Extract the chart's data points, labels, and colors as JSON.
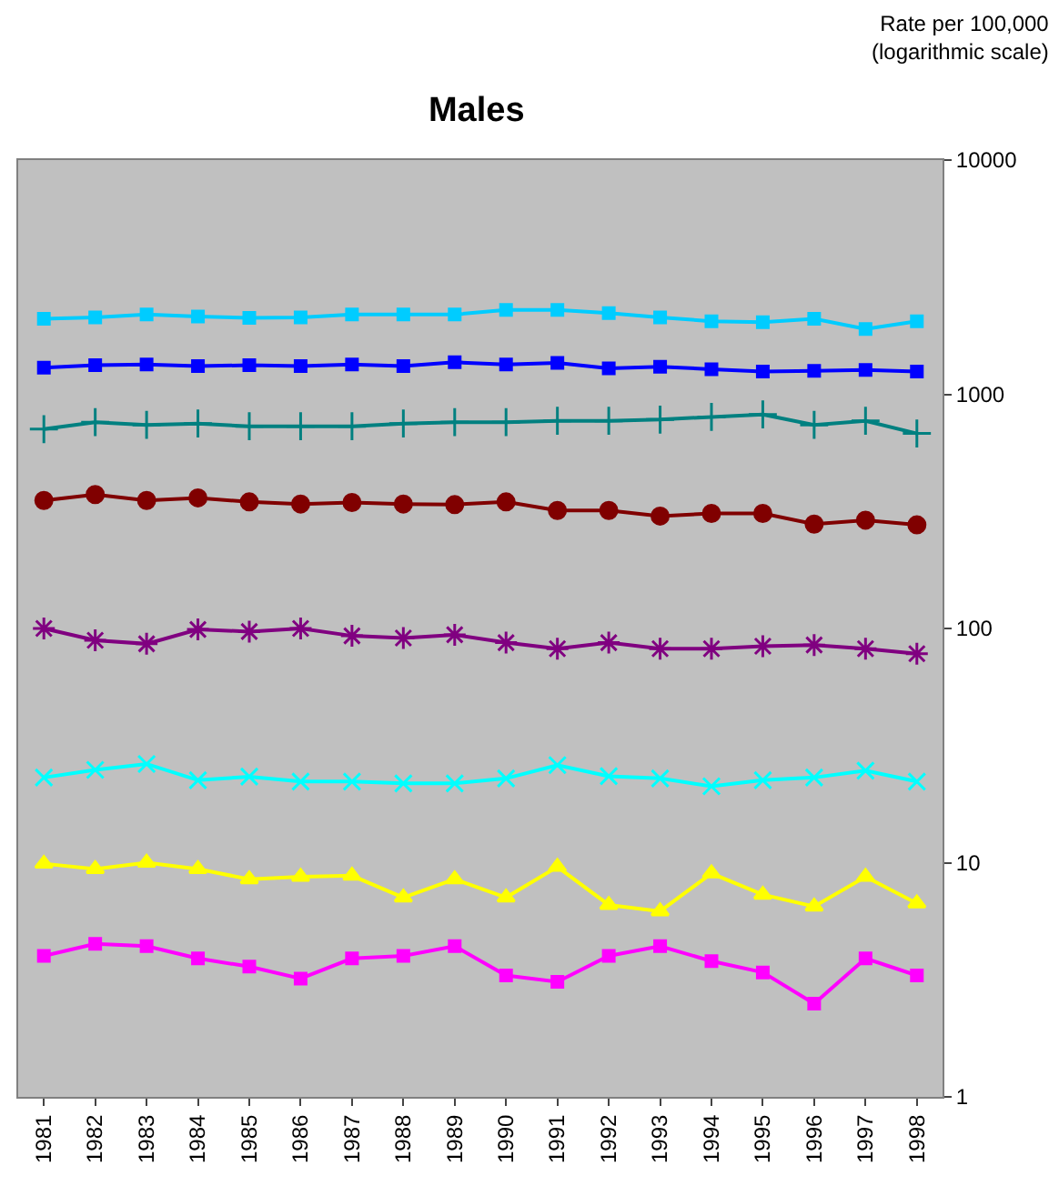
{
  "chart_data": {
    "type": "line",
    "title": "Males",
    "ylabel": "Rate per 100,000\n(logarithmic scale)",
    "categories": [
      "1981",
      "1982",
      "1983",
      "1984",
      "1985",
      "1986",
      "1987",
      "1988",
      "1989",
      "1990",
      "1991",
      "1992",
      "1993",
      "1994",
      "1995",
      "1996",
      "1997",
      "1998"
    ],
    "series": [
      {
        "color": "#00ccff",
        "marker": "square",
        "values": [
          2100,
          2130,
          2190,
          2150,
          2120,
          2130,
          2190,
          2190,
          2190,
          2290,
          2290,
          2220,
          2130,
          2050,
          2030,
          2100,
          1900,
          2050
        ]
      },
      {
        "color": "#0000ff",
        "marker": "square",
        "values": [
          1300,
          1330,
          1340,
          1320,
          1330,
          1320,
          1340,
          1320,
          1370,
          1340,
          1360,
          1290,
          1310,
          1280,
          1250,
          1260,
          1270,
          1250
        ]
      },
      {
        "color": "#008080",
        "marker": "plus",
        "values": [
          710,
          760,
          740,
          750,
          730,
          730,
          730,
          750,
          760,
          760,
          770,
          770,
          780,
          800,
          820,
          740,
          770,
          680
        ]
      },
      {
        "color": "#800000",
        "marker": "circle",
        "values": [
          352,
          373,
          352,
          361,
          347,
          340,
          345,
          340,
          338,
          347,
          319,
          319,
          302,
          310,
          310,
          279,
          290,
          277
        ]
      },
      {
        "color": "#800080",
        "marker": "cross",
        "values": [
          100,
          89,
          86,
          99,
          97,
          100,
          93,
          91,
          94,
          87,
          82,
          87,
          82,
          82,
          84,
          85,
          82,
          78
        ]
      },
      {
        "color": "#00ffff",
        "marker": "x",
        "values": [
          23.1,
          24.9,
          26.4,
          22.5,
          23.3,
          22.2,
          22.2,
          21.8,
          21.8,
          22.9,
          26.1,
          23.4,
          22.9,
          21.2,
          22.5,
          23.1,
          24.7,
          22.2
        ]
      },
      {
        "color": "#ffff00",
        "marker": "triangle",
        "values": [
          9.9,
          9.4,
          10.0,
          9.4,
          8.5,
          8.7,
          8.8,
          7.1,
          8.5,
          7.1,
          9.6,
          6.6,
          6.2,
          9.0,
          7.3,
          6.5,
          8.7,
          6.7
        ]
      },
      {
        "color": "#ff00ff",
        "marker": "square",
        "values": [
          4.0,
          4.5,
          4.4,
          3.9,
          3.6,
          3.2,
          3.9,
          4.0,
          4.4,
          3.3,
          3.1,
          4.0,
          4.4,
          3.8,
          3.4,
          2.5,
          3.9,
          3.3
        ]
      }
    ],
    "log": "y",
    "ylim": [
      1,
      10000
    ],
    "yticks": [
      1,
      10,
      100,
      1000,
      10000
    ],
    "grid": false,
    "line_style": "solid"
  }
}
